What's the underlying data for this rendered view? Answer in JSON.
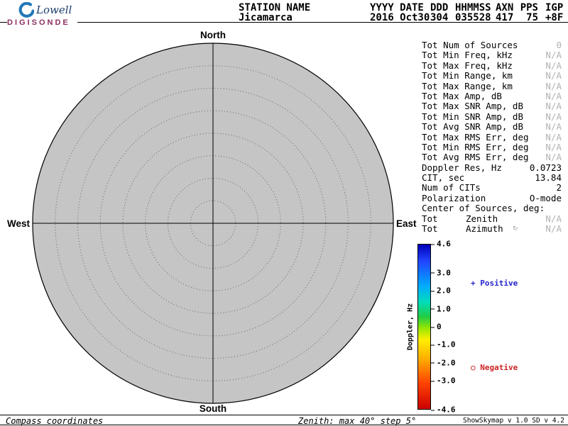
{
  "logo": {
    "brand": "Lowell",
    "product": "DIGISONDE"
  },
  "header": {
    "fields": [
      {
        "label": "STATION NAME",
        "value": "Jicamarca"
      },
      {
        "label": "YYYY DATE",
        "value": "2016 Oct30"
      },
      {
        "label": "DDD",
        "value": "304"
      },
      {
        "label": "HHMMSS",
        "value": "035528"
      },
      {
        "label": "AXN",
        "value": "417"
      },
      {
        "label": "PPS",
        "value": "75",
        "align": "right"
      },
      {
        "label": "IGP",
        "value": "+8F"
      }
    ]
  },
  "parameters": {
    "muted_color": "#b2b2b2",
    "rows": [
      {
        "label": "Tot Num of Sources",
        "value": "0",
        "muted": true
      },
      {
        "label": "Tot Min Freq, kHz",
        "value": "N/A",
        "muted": true
      },
      {
        "label": "Tot Max Freq, kHz",
        "value": "N/A",
        "muted": true
      },
      {
        "label": "Tot Min Range, km",
        "value": "N/A",
        "muted": true
      },
      {
        "label": "Tot Max Range, km",
        "value": "N/A",
        "muted": true
      },
      {
        "label": "Tot Max Amp, dB",
        "value": "N/A",
        "muted": true
      },
      {
        "label": "Tot Max SNR Amp, dB",
        "value": "N/A",
        "muted": true
      },
      {
        "label": "Tot Min SNR Amp, dB",
        "value": "N/A",
        "muted": true
      },
      {
        "label": "Tot Avg SNR Amp, dB",
        "value": "N/A",
        "muted": true
      },
      {
        "label": "Tot Max RMS Err, deg",
        "value": "N/A",
        "muted": true
      },
      {
        "label": "Tot Min RMS Err, deg",
        "value": "N/A",
        "muted": true
      },
      {
        "label": "Tot Avg RMS Err, deg",
        "value": "N/A",
        "muted": true
      },
      {
        "label": "Doppler Res, Hz",
        "value": "0.0723",
        "muted": false
      },
      {
        "label": "CIT, sec",
        "value": "13.84",
        "muted": false
      },
      {
        "label": "Num of CITs",
        "value": "2",
        "muted": false
      },
      {
        "label": "Polarization",
        "value": "O-mode",
        "muted": false
      },
      {
        "label": "Center of Sources, deg:",
        "value": "",
        "muted": false
      },
      {
        "label": "Tot",
        "sub": "Zenith",
        "value": "N/A",
        "muted": true
      },
      {
        "label": "Tot",
        "sub": "Azimuth",
        "value": "N/A",
        "muted": true,
        "icon": "↻"
      }
    ]
  },
  "skymap": {
    "compass": {
      "north": "North",
      "south": "South",
      "east": "East",
      "west": "West"
    },
    "zenith_max_deg": 40,
    "zenith_step_deg": 5,
    "fill_color": "#c5c5c5"
  },
  "colorbar": {
    "title": "Doppler, Hz",
    "range": [
      -4.6,
      4.6
    ],
    "ticks": [
      "4.6",
      "3.0",
      "2.0",
      "1.0",
      "0",
      "-1.0",
      "-2.0",
      "-3.0",
      "-4.6"
    ],
    "gradient": [
      "#0000b8 0%",
      "#2244ff 10%",
      "#00aaff 25%",
      "#00ddbb 35%",
      "#22cc44 44%",
      "#99e800 51%",
      "#ffee00 58%",
      "#ffaa00 70%",
      "#ff4400 84%",
      "#cc0000 100%"
    ]
  },
  "legend": {
    "positive": {
      "symbol": "+",
      "label": "Positive",
      "color": "#2222cc"
    },
    "negative": {
      "symbol": "○",
      "label": "Negative",
      "color": "#cc2222"
    }
  },
  "footer": {
    "left": "Compass coordinates",
    "center": "Zenith: max 40°  step 5°",
    "right": "ShowSkymap v 1.0  SD v 4.2"
  },
  "chart_data": {
    "type": "scatter",
    "title": "Skymap, compass coordinates",
    "points": [],
    "note": "No sources plotted (Tot Num of Sources = 0)",
    "polar_grid": {
      "zenith_max_deg": 40,
      "zenith_step_deg": 5,
      "rings_deg": [
        5,
        10,
        15,
        20,
        25,
        30,
        35,
        40
      ]
    },
    "colorbar": {
      "label": "Doppler, Hz",
      "min": -4.6,
      "max": 4.6,
      "ticks": [
        4.6,
        3.0,
        2.0,
        1.0,
        0,
        -1.0,
        -2.0,
        -3.0,
        -4.6
      ]
    }
  }
}
